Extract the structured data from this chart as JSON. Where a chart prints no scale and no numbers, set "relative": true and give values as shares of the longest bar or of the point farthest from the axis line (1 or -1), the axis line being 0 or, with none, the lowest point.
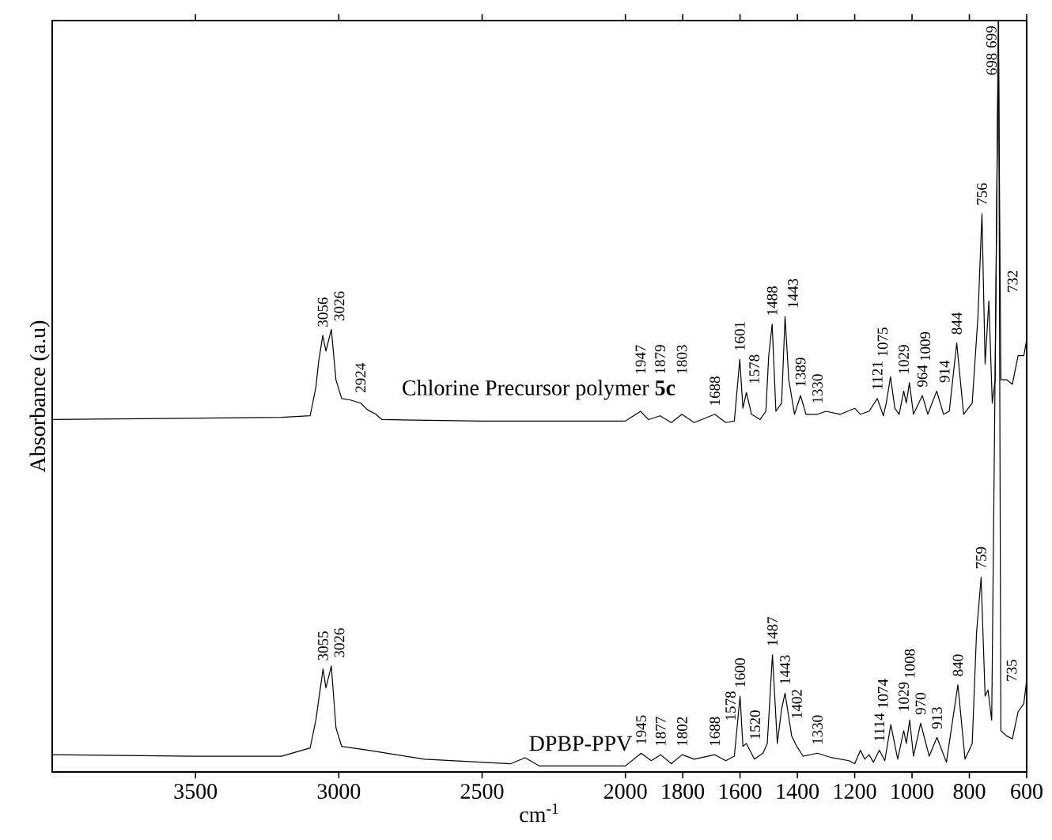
{
  "chart_data": {
    "type": "line",
    "xlabel": "cm$^{-1}$",
    "ylabel": "Absorbance (a.u)",
    "relative": true,
    "tick_labels": "x",
    "xlim": [
      4000,
      600
    ],
    "xticks": [
      3500,
      3000,
      2500,
      2000,
      1800,
      1600,
      1400,
      1200,
      1000,
      800,
      600
    ],
    "series": [
      {
        "name": "Chlorine Precursor polymer **5c**",
        "color": "#000000",
        "x": [
          4000,
          3200,
          3100,
          3080,
          3070,
          3056,
          3045,
          3026,
          3010,
          2990,
          2960,
          2924,
          2900,
          2870,
          2850,
          2500,
          2000,
          1947,
          1920,
          1879,
          1840,
          1803,
          1760,
          1688,
          1650,
          1620,
          1601,
          1590,
          1578,
          1560,
          1530,
          1510,
          1500,
          1488,
          1475,
          1455,
          1443,
          1430,
          1410,
          1389,
          1370,
          1330,
          1300,
          1250,
          1200,
          1180,
          1150,
          1121,
          1100,
          1090,
          1075,
          1060,
          1045,
          1029,
          1020,
          1009,
          995,
          964,
          945,
          914,
          890,
          870,
          844,
          820,
          790,
          770,
          756,
          745,
          732,
          720,
          710,
          699,
          690,
          670,
          650,
          630,
          610,
          600
        ],
        "values": [
          0.469,
          0.472,
          0.474,
          0.512,
          0.547,
          0.581,
          0.56,
          0.589,
          0.522,
          0.497,
          0.495,
          0.491,
          0.482,
          0.476,
          0.469,
          0.467,
          0.467,
          0.48,
          0.469,
          0.474,
          0.465,
          0.476,
          0.465,
          0.476,
          0.465,
          0.467,
          0.549,
          0.484,
          0.505,
          0.476,
          0.469,
          0.48,
          0.554,
          0.596,
          0.48,
          0.491,
          0.606,
          0.522,
          0.476,
          0.501,
          0.476,
          0.476,
          0.48,
          0.476,
          0.484,
          0.476,
          0.48,
          0.497,
          0.474,
          0.491,
          0.526,
          0.484,
          0.476,
          0.507,
          0.491,
          0.518,
          0.476,
          0.501,
          0.476,
          0.507,
          0.476,
          0.48,
          0.571,
          0.476,
          0.491,
          0.606,
          0.743,
          0.543,
          0.627,
          0.491,
          0.522,
          1.0,
          0.522,
          0.522,
          0.516,
          0.554,
          0.554,
          0.575
        ]
      },
      {
        "name": "DPBP-PPV",
        "color": "#000000",
        "x": [
          4000,
          3500,
          3200,
          3100,
          3080,
          3055,
          3045,
          3026,
          3010,
          2990,
          2900,
          2700,
          2400,
          2350,
          2300,
          2000,
          1945,
          1910,
          1877,
          1840,
          1802,
          1760,
          1688,
          1650,
          1620,
          1600,
          1590,
          1578,
          1550,
          1520,
          1505,
          1487,
          1470,
          1455,
          1443,
          1420,
          1402,
          1380,
          1330,
          1280,
          1220,
          1200,
          1180,
          1165,
          1150,
          1135,
          1114,
          1095,
          1074,
          1050,
          1029,
          1020,
          1008,
          995,
          970,
          940,
          913,
          880,
          840,
          815,
          790,
          775,
          759,
          745,
          735,
          722,
          698,
          690,
          670,
          650,
          630,
          610,
          600
        ],
        "values": [
          0.023,
          0.021,
          0.021,
          0.032,
          0.069,
          0.137,
          0.112,
          0.141,
          0.059,
          0.034,
          0.029,
          0.017,
          0.011,
          0.019,
          0.008,
          0.008,
          0.025,
          0.015,
          0.023,
          0.011,
          0.023,
          0.017,
          0.023,
          0.015,
          0.021,
          0.101,
          0.034,
          0.038,
          0.017,
          0.025,
          0.038,
          0.156,
          0.038,
          0.084,
          0.105,
          0.048,
          0.034,
          0.021,
          0.025,
          0.019,
          0.015,
          0.011,
          0.029,
          0.017,
          0.023,
          0.013,
          0.029,
          0.015,
          0.063,
          0.017,
          0.055,
          0.038,
          0.069,
          0.021,
          0.065,
          0.021,
          0.046,
          0.013,
          0.116,
          0.017,
          0.038,
          0.185,
          0.259,
          0.101,
          0.109,
          0.069,
          1.0,
          0.055,
          0.048,
          0.044,
          0.08,
          0.091,
          0.122
        ]
      }
    ],
    "annotations": [
      {
        "text": "3056",
        "x": 3056,
        "y": 0.581
      },
      {
        "text": "3026",
        "x": 3026,
        "y": 0.589
      },
      {
        "text": "2924",
        "x": 2924,
        "y": 0.491
      },
      {
        "text": "1947",
        "x": 1947,
        "y": 0.48
      },
      {
        "text": "1879",
        "x": 1879,
        "y": 0.474
      },
      {
        "text": "1803",
        "x": 1803,
        "y": 0.476
      },
      {
        "text": "1688",
        "x": 1688,
        "y": 0.476
      },
      {
        "text": "1601",
        "x": 1601,
        "y": 0.549
      },
      {
        "text": "1578",
        "x": 1578,
        "y": 0.505
      },
      {
        "text": "1488",
        "x": 1488,
        "y": 0.596
      },
      {
        "text": "1443",
        "x": 1443,
        "y": 0.606
      },
      {
        "text": "1389",
        "x": 1389,
        "y": 0.501
      },
      {
        "text": "1330",
        "x": 1330,
        "y": 0.476
      },
      {
        "text": "1121",
        "x": 1121,
        "y": 0.497
      },
      {
        "text": "1075",
        "x": 1075,
        "y": 0.526
      },
      {
        "text": "1029",
        "x": 1029,
        "y": 0.507
      },
      {
        "text": "1009",
        "x": 1009,
        "y": 0.518
      },
      {
        "text": "964",
        "x": 964,
        "y": 0.501
      },
      {
        "text": "914",
        "x": 914,
        "y": 0.507
      },
      {
        "text": "844",
        "x": 844,
        "y": 0.571
      },
      {
        "text": "756",
        "x": 756,
        "y": 0.743
      },
      {
        "text": "732",
        "x": 732,
        "y": 0.627
      },
      {
        "text": "699",
        "x": 699,
        "y": 1.0
      },
      {
        "text": "3055",
        "x": 3055,
        "y": 0.137
      },
      {
        "text": "3026",
        "x": 3026,
        "y": 0.141
      },
      {
        "text": "1945",
        "x": 1945,
        "y": 0.025
      },
      {
        "text": "1877",
        "x": 1877,
        "y": 0.023
      },
      {
        "text": "1802",
        "x": 1802,
        "y": 0.023
      },
      {
        "text": "1688",
        "x": 1688,
        "y": 0.023
      },
      {
        "text": "1600",
        "x": 1600,
        "y": 0.101
      },
      {
        "text": "1578",
        "x": 1578,
        "y": 0.038
      },
      {
        "text": "1520",
        "x": 1520,
        "y": 0.025
      },
      {
        "text": "1487",
        "x": 1487,
        "y": 0.156
      },
      {
        "text": "1443",
        "x": 1443,
        "y": 0.105
      },
      {
        "text": "1402",
        "x": 1402,
        "y": 0.034
      },
      {
        "text": "1330",
        "x": 1330,
        "y": 0.025
      },
      {
        "text": "1114",
        "x": 1114,
        "y": 0.029
      },
      {
        "text": "1074",
        "x": 1074,
        "y": 0.063
      },
      {
        "text": "1029",
        "x": 1029,
        "y": 0.055
      },
      {
        "text": "1008",
        "x": 1008,
        "y": 0.069
      },
      {
        "text": "970",
        "x": 970,
        "y": 0.065
      },
      {
        "text": "913",
        "x": 913,
        "y": 0.046
      },
      {
        "text": "840",
        "x": 840,
        "y": 0.116
      },
      {
        "text": "759",
        "x": 759,
        "y": 0.259
      },
      {
        "text": "735",
        "x": 735,
        "y": 0.109
      },
      {
        "text": "698",
        "x": 698,
        "y": 1.0
      }
    ]
  }
}
